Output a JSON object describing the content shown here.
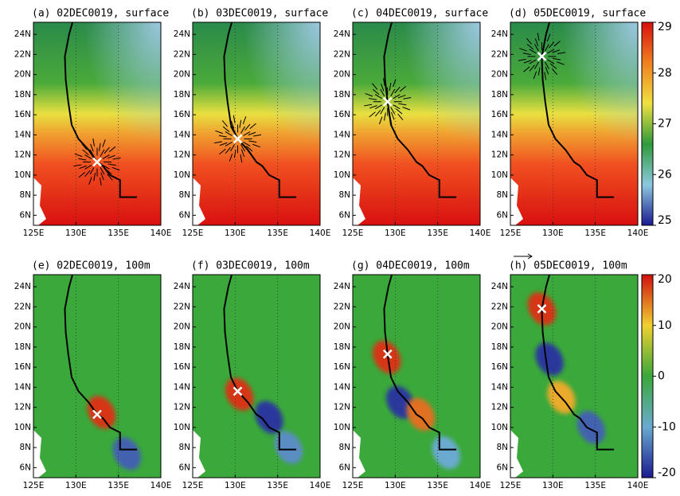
{
  "chart_data": [
    {
      "type": "map",
      "title": "(a) 02DEC0019, surface",
      "xlim": [
        125,
        140
      ],
      "ylim": [
        5,
        25.2
      ],
      "grid": true,
      "xticks": [
        {
          "value": 125,
          "label": "125E"
        },
        {
          "value": 130,
          "label": "130E"
        },
        {
          "value": 135,
          "label": "135E"
        },
        {
          "value": 140,
          "label": "140E"
        }
      ],
      "yticks": [
        {
          "value": 6,
          "label": "6N"
        },
        {
          "value": 8,
          "label": "8N"
        },
        {
          "value": 10,
          "label": "10N"
        },
        {
          "value": 12,
          "label": "12N"
        },
        {
          "value": 14,
          "label": "14N"
        },
        {
          "value": 16,
          "label": "16N"
        },
        {
          "value": 18,
          "label": "18N"
        },
        {
          "value": 20,
          "label": "20N"
        },
        {
          "value": 22,
          "label": "22N"
        },
        {
          "value": 24,
          "label": "24N"
        }
      ],
      "track": {
        "lon": [
          137.2,
          135.2,
          135.2,
          134,
          133.2,
          132.5,
          131.5,
          130.3,
          129.5,
          129.1,
          128.8,
          128.7,
          129.2,
          129.6
        ],
        "lat": [
          7.8,
          7.8,
          9.5,
          10,
          10.9,
          11.3,
          12.5,
          13.6,
          15,
          17.3,
          19.5,
          21.8,
          24,
          25.2
        ]
      },
      "center": {
        "lon": 132.5,
        "lat": 11.3
      }
    },
    {
      "type": "map",
      "title": "(b) 03DEC0019, surface",
      "xlim": [
        125,
        140
      ],
      "ylim": [
        5,
        25.2
      ],
      "grid": true,
      "xticks": [
        {
          "value": 125,
          "label": "125E"
        },
        {
          "value": 130,
          "label": "130E"
        },
        {
          "value": 135,
          "label": "135E"
        },
        {
          "value": 140,
          "label": "140E"
        }
      ],
      "yticks": [
        {
          "value": 6,
          "label": "6N"
        },
        {
          "value": 8,
          "label": "8N"
        },
        {
          "value": 10,
          "label": "10N"
        },
        {
          "value": 12,
          "label": "12N"
        },
        {
          "value": 14,
          "label": "14N"
        },
        {
          "value": 16,
          "label": "16N"
        },
        {
          "value": 18,
          "label": "18N"
        },
        {
          "value": 20,
          "label": "20N"
        },
        {
          "value": 22,
          "label": "22N"
        },
        {
          "value": 24,
          "label": "24N"
        }
      ],
      "track": {
        "lon": [
          137.2,
          135.2,
          135.2,
          134,
          133.2,
          132.5,
          131.5,
          130.3,
          129.5,
          129.1,
          128.8,
          128.7,
          129.2,
          129.6
        ],
        "lat": [
          7.8,
          7.8,
          9.5,
          10,
          10.9,
          11.3,
          12.5,
          13.6,
          15,
          17.3,
          19.5,
          21.8,
          24,
          25.2
        ]
      },
      "center": {
        "lon": 130.3,
        "lat": 13.6
      }
    },
    {
      "type": "map",
      "title": "(c) 04DEC0019, surface",
      "xlim": [
        125,
        140
      ],
      "ylim": [
        5,
        25.2
      ],
      "grid": true,
      "xticks": [
        {
          "value": 125,
          "label": "125E"
        },
        {
          "value": 130,
          "label": "130E"
        },
        {
          "value": 135,
          "label": "135E"
        },
        {
          "value": 140,
          "label": "140E"
        }
      ],
      "yticks": [
        {
          "value": 6,
          "label": "6N"
        },
        {
          "value": 8,
          "label": "8N"
        },
        {
          "value": 10,
          "label": "10N"
        },
        {
          "value": 12,
          "label": "12N"
        },
        {
          "value": 14,
          "label": "14N"
        },
        {
          "value": 16,
          "label": "16N"
        },
        {
          "value": 18,
          "label": "18N"
        },
        {
          "value": 20,
          "label": "20N"
        },
        {
          "value": 22,
          "label": "22N"
        },
        {
          "value": 24,
          "label": "24N"
        }
      ],
      "track": {
        "lon": [
          137.2,
          135.2,
          135.2,
          134,
          133.2,
          132.5,
          131.5,
          130.3,
          129.5,
          129.1,
          128.8,
          128.7,
          129.2,
          129.6
        ],
        "lat": [
          7.8,
          7.8,
          9.5,
          10,
          10.9,
          11.3,
          12.5,
          13.6,
          15,
          17.3,
          19.5,
          21.8,
          24,
          25.2
        ]
      },
      "center": {
        "lon": 129.1,
        "lat": 17.3
      }
    },
    {
      "type": "map",
      "title": "(d) 05DEC0019, surface",
      "xlim": [
        125,
        140
      ],
      "ylim": [
        5,
        25.2
      ],
      "grid": true,
      "xticks": [
        {
          "value": 125,
          "label": "125E"
        },
        {
          "value": 130,
          "label": "130E"
        },
        {
          "value": 135,
          "label": "135E"
        },
        {
          "value": 140,
          "label": "140E"
        }
      ],
      "yticks": [
        {
          "value": 6,
          "label": "6N"
        },
        {
          "value": 8,
          "label": "8N"
        },
        {
          "value": 10,
          "label": "10N"
        },
        {
          "value": 12,
          "label": "12N"
        },
        {
          "value": 14,
          "label": "14N"
        },
        {
          "value": 16,
          "label": "16N"
        },
        {
          "value": 18,
          "label": "18N"
        },
        {
          "value": 20,
          "label": "20N"
        },
        {
          "value": 22,
          "label": "22N"
        },
        {
          "value": 24,
          "label": "24N"
        }
      ],
      "track": {
        "lon": [
          137.2,
          135.2,
          135.2,
          134,
          133.2,
          132.5,
          131.5,
          130.3,
          129.5,
          129.1,
          128.8,
          128.7,
          129.2,
          129.6
        ],
        "lat": [
          7.8,
          7.8,
          9.5,
          10,
          10.9,
          11.3,
          12.5,
          13.6,
          15,
          17.3,
          19.5,
          21.8,
          24,
          25.2
        ]
      },
      "center": {
        "lon": 128.7,
        "lat": 21.8
      },
      "colorbar": {
        "lim": [
          25,
          29
        ],
        "ticks": [
          25,
          26,
          27,
          28,
          29
        ],
        "colors": [
          "#1a1a90",
          "#8cc8e0",
          "#2e9a3a",
          "#f0e040",
          "#f08020",
          "#d81010"
        ]
      }
    },
    {
      "type": "map",
      "title": "(e) 02DEC0019, 100m",
      "xlim": [
        125,
        140
      ],
      "ylim": [
        5,
        25.2
      ],
      "grid": true,
      "xticks": [
        {
          "value": 125,
          "label": "125E"
        },
        {
          "value": 130,
          "label": "130E"
        },
        {
          "value": 135,
          "label": "135E"
        },
        {
          "value": 140,
          "label": "140E"
        }
      ],
      "yticks": [
        {
          "value": 6,
          "label": "6N"
        },
        {
          "value": 8,
          "label": "8N"
        },
        {
          "value": 10,
          "label": "10N"
        },
        {
          "value": 12,
          "label": "12N"
        },
        {
          "value": 14,
          "label": "14N"
        },
        {
          "value": 16,
          "label": "16N"
        },
        {
          "value": 18,
          "label": "18N"
        },
        {
          "value": 20,
          "label": "20N"
        },
        {
          "value": 22,
          "label": "22N"
        },
        {
          "value": 24,
          "label": "24N"
        }
      ],
      "track": {
        "lon": [
          137.2,
          135.2,
          135.2,
          134,
          133.2,
          132.5,
          131.5,
          130.3,
          129.5,
          129.1,
          128.8,
          128.7,
          129.2,
          129.6
        ],
        "lat": [
          7.8,
          7.8,
          9.5,
          10,
          10.9,
          11.3,
          12.5,
          13.6,
          15,
          17.3,
          19.5,
          21.8,
          24,
          25.2
        ]
      },
      "center": {
        "lon": 132.5,
        "lat": 11.3
      },
      "features": [
        {
          "lon": 133,
          "lat": 11.5,
          "value": 18
        },
        {
          "lon": 136,
          "lat": 7.4,
          "value": -15
        }
      ]
    },
    {
      "type": "map",
      "title": "(f) 03DEC0019, 100m",
      "xlim": [
        125,
        140
      ],
      "ylim": [
        5,
        25.2
      ],
      "grid": true,
      "xticks": [
        {
          "value": 125,
          "label": "125E"
        },
        {
          "value": 130,
          "label": "130E"
        },
        {
          "value": 135,
          "label": "135E"
        },
        {
          "value": 140,
          "label": "140E"
        }
      ],
      "yticks": [
        {
          "value": 6,
          "label": "6N"
        },
        {
          "value": 8,
          "label": "8N"
        },
        {
          "value": 10,
          "label": "10N"
        },
        {
          "value": 12,
          "label": "12N"
        },
        {
          "value": 14,
          "label": "14N"
        },
        {
          "value": 16,
          "label": "16N"
        },
        {
          "value": 18,
          "label": "18N"
        },
        {
          "value": 20,
          "label": "20N"
        },
        {
          "value": 22,
          "label": "22N"
        },
        {
          "value": 24,
          "label": "24N"
        }
      ],
      "track": {
        "lon": [
          137.2,
          135.2,
          135.2,
          134,
          133.2,
          132.5,
          131.5,
          130.3,
          129.5,
          129.1,
          128.8,
          128.7,
          129.2,
          129.6
        ],
        "lat": [
          7.8,
          7.8,
          9.5,
          10,
          10.9,
          11.3,
          12.5,
          13.6,
          15,
          17.3,
          19.5,
          21.8,
          24,
          25.2
        ]
      },
      "center": {
        "lon": 130.3,
        "lat": 13.6
      },
      "features": [
        {
          "lon": 130.5,
          "lat": 13.3,
          "value": 18
        },
        {
          "lon": 134,
          "lat": 11,
          "value": -18
        },
        {
          "lon": 136.3,
          "lat": 8,
          "value": -12
        }
      ]
    },
    {
      "type": "map",
      "title": "(g) 04DEC0019, 100m",
      "xlim": [
        125,
        140
      ],
      "ylim": [
        5,
        25.2
      ],
      "grid": true,
      "xticks": [
        {
          "value": 125,
          "label": "125E"
        },
        {
          "value": 130,
          "label": "130E"
        },
        {
          "value": 135,
          "label": "135E"
        },
        {
          "value": 140,
          "label": "140E"
        }
      ],
      "yticks": [
        {
          "value": 6,
          "label": "6N"
        },
        {
          "value": 8,
          "label": "8N"
        },
        {
          "value": 10,
          "label": "10N"
        },
        {
          "value": 12,
          "label": "12N"
        },
        {
          "value": 14,
          "label": "14N"
        },
        {
          "value": 16,
          "label": "16N"
        },
        {
          "value": 18,
          "label": "18N"
        },
        {
          "value": 20,
          "label": "20N"
        },
        {
          "value": 22,
          "label": "22N"
        },
        {
          "value": 24,
          "label": "24N"
        }
      ],
      "track": {
        "lon": [
          137.2,
          135.2,
          135.2,
          134,
          133.2,
          132.5,
          131.5,
          130.3,
          129.5,
          129.1,
          128.8,
          128.7,
          129.2,
          129.6
        ],
        "lat": [
          7.8,
          7.8,
          9.5,
          10,
          10.9,
          11.3,
          12.5,
          13.6,
          15,
          17.3,
          19.5,
          21.8,
          24,
          25.2
        ]
      },
      "center": {
        "lon": 129.1,
        "lat": 17.3
      },
      "features": [
        {
          "lon": 129,
          "lat": 17,
          "value": 18
        },
        {
          "lon": 130.6,
          "lat": 12.5,
          "value": -18
        },
        {
          "lon": 133,
          "lat": 11.3,
          "value": 15
        },
        {
          "lon": 136,
          "lat": 7.5,
          "value": -10
        }
      ]
    },
    {
      "type": "map",
      "title": "(h) 05DEC0019, 100m",
      "xlim": [
        125,
        140
      ],
      "ylim": [
        5,
        25.2
      ],
      "grid": true,
      "xticks": [
        {
          "value": 125,
          "label": "125E"
        },
        {
          "value": 130,
          "label": "130E"
        },
        {
          "value": 135,
          "label": "135E"
        },
        {
          "value": 140,
          "label": "140E"
        }
      ],
      "yticks": [
        {
          "value": 6,
          "label": "6N"
        },
        {
          "value": 8,
          "label": "8N"
        },
        {
          "value": 10,
          "label": "10N"
        },
        {
          "value": 12,
          "label": "12N"
        },
        {
          "value": 14,
          "label": "14N"
        },
        {
          "value": 16,
          "label": "16N"
        },
        {
          "value": 18,
          "label": "18N"
        },
        {
          "value": 20,
          "label": "20N"
        },
        {
          "value": 22,
          "label": "22N"
        },
        {
          "value": 24,
          "label": "24N"
        }
      ],
      "track": {
        "lon": [
          137.2,
          135.2,
          135.2,
          134,
          133.2,
          132.5,
          131.5,
          130.3,
          129.5,
          129.1,
          128.8,
          128.7,
          129.2,
          129.6
        ],
        "lat": [
          7.8,
          7.8,
          9.5,
          10,
          10.9,
          11.3,
          12.5,
          13.6,
          15,
          17.3,
          19.5,
          21.8,
          24,
          25.2
        ]
      },
      "center": {
        "lon": 128.7,
        "lat": 21.8
      },
      "features": [
        {
          "lon": 128.7,
          "lat": 21.8,
          "value": 18
        },
        {
          "lon": 129.6,
          "lat": 16.8,
          "value": -18
        },
        {
          "lon": 131,
          "lat": 13,
          "value": 12
        },
        {
          "lon": 134.5,
          "lat": 10,
          "value": -15
        }
      ],
      "colorbar": {
        "lim": [
          -20,
          20
        ],
        "ticks": [
          -20,
          -10,
          0,
          10,
          20
        ],
        "colors": [
          "#1a1a90",
          "#6aaad0",
          "#3aa83a",
          "#f0d030",
          "#d01010"
        ]
      }
    }
  ]
}
